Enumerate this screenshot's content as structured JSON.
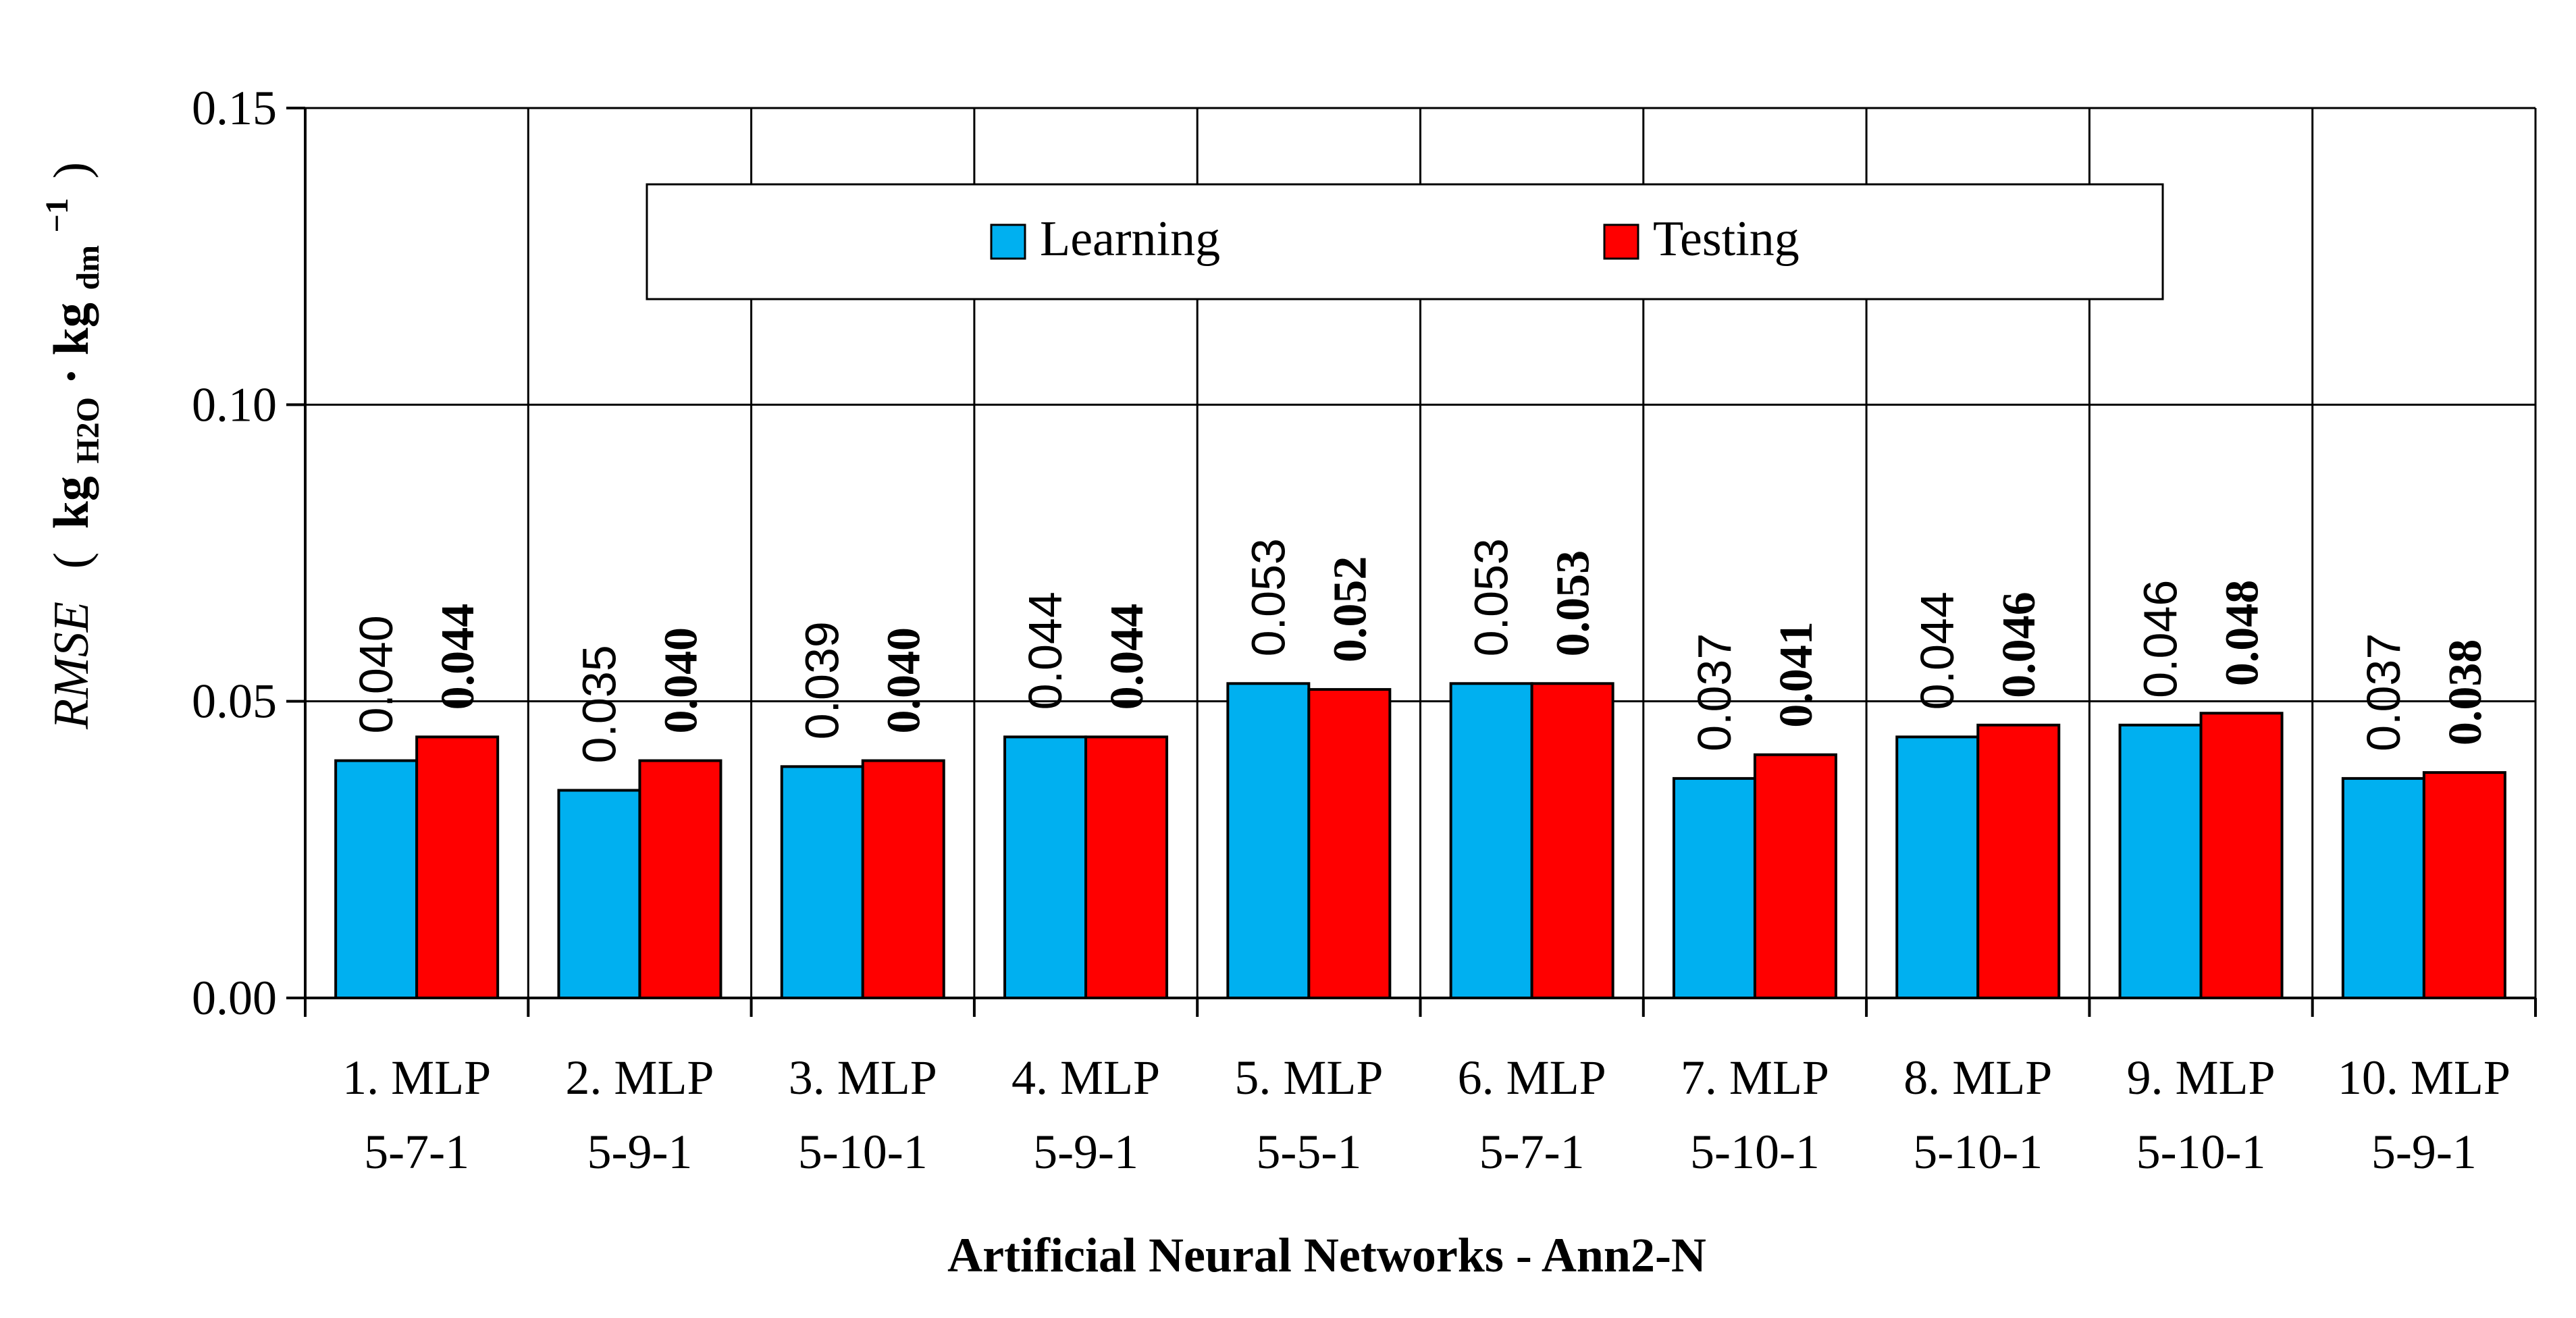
{
  "chart_data": {
    "type": "bar",
    "title": "",
    "categories": [
      [
        "1. MLP",
        "5-7-1"
      ],
      [
        "2. MLP",
        "5-9-1"
      ],
      [
        "3. MLP",
        "5-10-1"
      ],
      [
        "4. MLP",
        "5-9-1"
      ],
      [
        "5. MLP",
        "5-5-1"
      ],
      [
        "6. MLP",
        "5-7-1"
      ],
      [
        "7. MLP",
        "5-10-1"
      ],
      [
        "8. MLP",
        "5-10-1"
      ],
      [
        "9. MLP",
        "5-10-1"
      ],
      [
        "10. MLP",
        "5-9-1"
      ]
    ],
    "series": [
      {
        "name": "Learning",
        "color": "#00b0f0",
        "values": [
          0.04,
          0.035,
          0.039,
          0.044,
          0.053,
          0.053,
          0.037,
          0.044,
          0.046,
          0.037
        ],
        "labels": [
          "0.040",
          "0.035",
          "0.039",
          "0.044",
          "0.053",
          "0.053",
          "0.037",
          "0.044",
          "0.046",
          "0.037"
        ]
      },
      {
        "name": "Testing",
        "color": "#ff0000",
        "values": [
          0.044,
          0.04,
          0.04,
          0.044,
          0.052,
          0.053,
          0.041,
          0.046,
          0.048,
          0.038
        ],
        "labels": [
          "0.044",
          "0.040",
          "0.040",
          "0.044",
          "0.052",
          "0.053",
          "0.041",
          "0.046",
          "0.048",
          "0.038"
        ]
      }
    ],
    "xlabel": "Artificial Neural Networks - Ann2-N",
    "ylabel": {
      "name": "RMSE",
      "open": "(",
      "unit_base1": "kg",
      "unit_sub1": "H2O",
      "dot": "·",
      "unit_base2": "kg",
      "unit_sub2": "dm",
      "unit_sup": "−1",
      "close": ")"
    },
    "ylim": [
      0,
      0.15
    ],
    "yticks": [
      "0.00",
      "0.05",
      "0.10",
      "0.15"
    ],
    "ytick_values": [
      0,
      0.05,
      0.1,
      0.15
    ],
    "grid": true,
    "legend_position": "top-center"
  }
}
